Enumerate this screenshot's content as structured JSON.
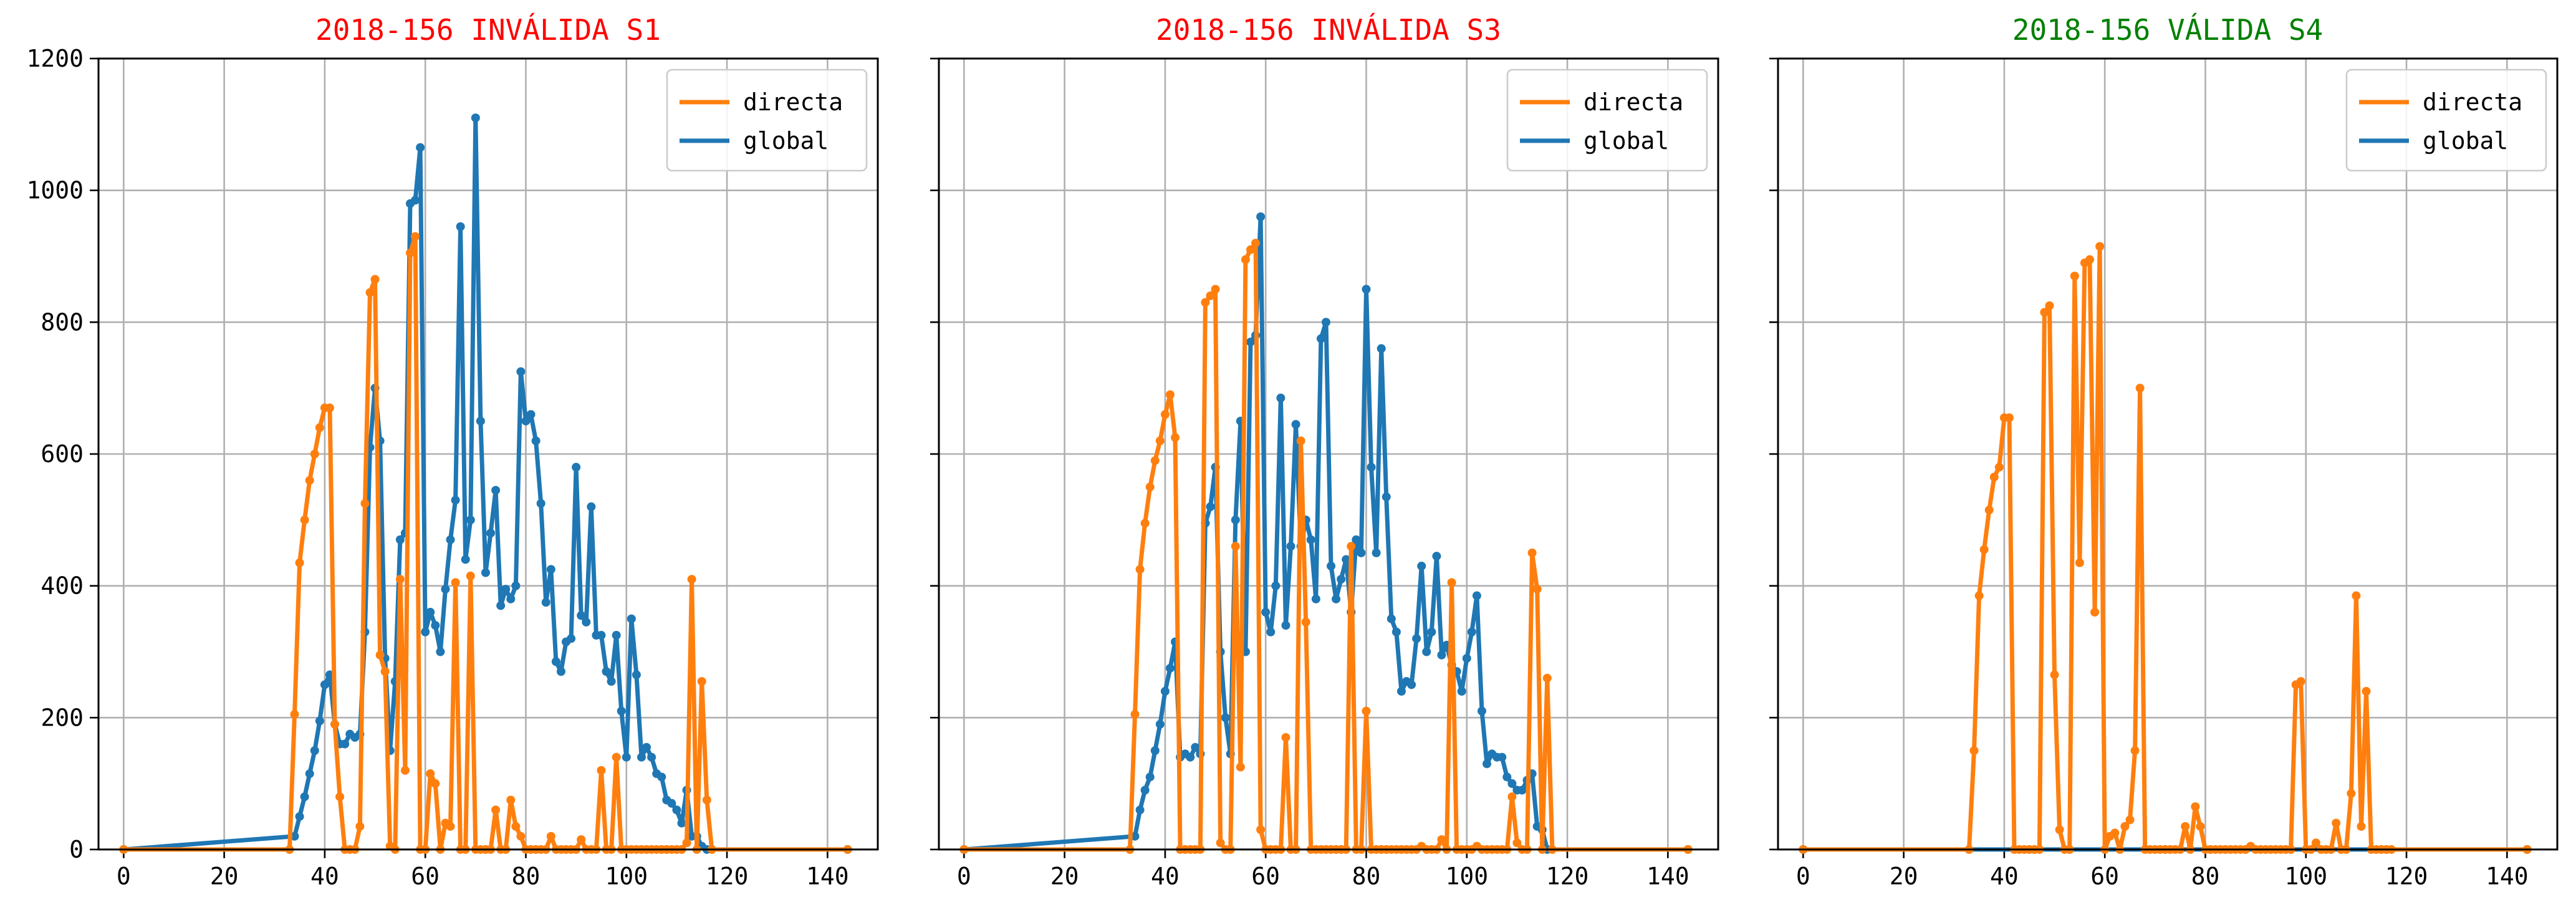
{
  "colors": {
    "directa": "#ff7f0e",
    "global": "#1f77b4",
    "title_invalid": "#ff0000",
    "title_valid": "#008000",
    "grid": "#b0b0b0",
    "axis": "#000000"
  },
  "chart_data": [
    {
      "type": "line",
      "title": "2018-156 INVÁLIDA S1",
      "title_color": "#ff0000",
      "xlim": [
        -5,
        150
      ],
      "ylim": [
        0,
        1200
      ],
      "x_ticks": [
        "0",
        "20",
        "40",
        "60",
        "80",
        "100",
        "120",
        "140"
      ],
      "y_ticks": [
        "0",
        "200",
        "400",
        "600",
        "800",
        "1000",
        "1200"
      ],
      "grid": true,
      "legend": "upper right",
      "series": [
        {
          "name": "global",
          "color": "#1f77b4",
          "x": [
            0,
            34,
            35,
            36,
            37,
            38,
            39,
            40,
            41,
            42,
            43,
            44,
            45,
            46,
            47,
            48,
            49,
            50,
            51,
            52,
            53,
            54,
            55,
            56,
            57,
            58,
            59,
            60,
            61,
            62,
            63,
            64,
            65,
            66,
            67,
            68,
            69,
            70,
            71,
            72,
            73,
            74,
            75,
            76,
            77,
            78,
            79,
            80,
            81,
            82,
            83,
            84,
            85,
            86,
            87,
            88,
            89,
            90,
            91,
            92,
            93,
            94,
            95,
            96,
            97,
            98,
            99,
            100,
            101,
            102,
            103,
            104,
            105,
            106,
            107,
            108,
            109,
            110,
            111,
            112,
            113,
            114,
            115,
            116,
            144
          ],
          "y": [
            0,
            20,
            50,
            80,
            115,
            150,
            195,
            250,
            265,
            190,
            160,
            160,
            175,
            170,
            175,
            330,
            610,
            700,
            620,
            290,
            150,
            255,
            470,
            480,
            980,
            985,
            1065,
            330,
            360,
            340,
            300,
            395,
            470,
            530,
            945,
            440,
            500,
            1110,
            650,
            420,
            480,
            545,
            370,
            395,
            380,
            400,
            725,
            650,
            660,
            620,
            525,
            375,
            425,
            285,
            270,
            315,
            320,
            580,
            355,
            345,
            520,
            325,
            325,
            270,
            255,
            325,
            210,
            140,
            350,
            265,
            140,
            155,
            140,
            115,
            110,
            75,
            70,
            60,
            40,
            90,
            20,
            20,
            5,
            0,
            0
          ]
        },
        {
          "name": "directa",
          "color": "#ff7f0e",
          "x": [
            0,
            33,
            34,
            35,
            36,
            37,
            38,
            39,
            40,
            41,
            42,
            43,
            44,
            45,
            46,
            47,
            48,
            49,
            50,
            51,
            52,
            53,
            54,
            55,
            56,
            57,
            58,
            59,
            60,
            61,
            62,
            63,
            64,
            65,
            66,
            67,
            68,
            69,
            70,
            71,
            72,
            73,
            74,
            75,
            76,
            77,
            78,
            79,
            80,
            81,
            82,
            83,
            84,
            85,
            86,
            87,
            88,
            89,
            90,
            91,
            92,
            93,
            94,
            95,
            96,
            97,
            98,
            99,
            100,
            101,
            102,
            103,
            104,
            105,
            106,
            107,
            108,
            109,
            110,
            111,
            112,
            113,
            114,
            115,
            116,
            117,
            144
          ],
          "y": [
            0,
            0,
            205,
            435,
            500,
            560,
            600,
            640,
            670,
            670,
            190,
            80,
            0,
            0,
            0,
            35,
            525,
            845,
            865,
            295,
            270,
            5,
            0,
            410,
            120,
            905,
            930,
            0,
            0,
            115,
            100,
            0,
            40,
            35,
            405,
            0,
            0,
            415,
            0,
            0,
            0,
            0,
            60,
            0,
            0,
            75,
            35,
            20,
            0,
            0,
            0,
            0,
            0,
            20,
            0,
            0,
            0,
            0,
            0,
            15,
            0,
            0,
            0,
            120,
            0,
            0,
            140,
            0,
            0,
            0,
            0,
            0,
            0,
            0,
            0,
            0,
            0,
            0,
            0,
            0,
            10,
            410,
            0,
            255,
            75,
            0,
            0
          ]
        }
      ]
    },
    {
      "type": "line",
      "title": "2018-156 INVÁLIDA S3",
      "title_color": "#ff0000",
      "xlim": [
        -5,
        150
      ],
      "ylim": [
        0,
        1200
      ],
      "x_ticks": [
        "0",
        "20",
        "40",
        "60",
        "80",
        "100",
        "120",
        "140"
      ],
      "y_ticks": [],
      "grid": true,
      "legend": "upper right",
      "series": [
        {
          "name": "global",
          "color": "#1f77b4",
          "x": [
            0,
            34,
            35,
            36,
            37,
            38,
            39,
            40,
            41,
            42,
            43,
            44,
            45,
            46,
            47,
            48,
            49,
            50,
            51,
            52,
            53,
            54,
            55,
            56,
            57,
            58,
            59,
            60,
            61,
            62,
            63,
            64,
            65,
            66,
            67,
            68,
            69,
            70,
            71,
            72,
            73,
            74,
            75,
            76,
            77,
            78,
            79,
            80,
            81,
            82,
            83,
            84,
            85,
            86,
            87,
            88,
            89,
            90,
            91,
            92,
            93,
            94,
            95,
            96,
            97,
            98,
            99,
            100,
            101,
            102,
            103,
            104,
            105,
            106,
            107,
            108,
            109,
            110,
            111,
            112,
            113,
            114,
            115,
            116,
            144
          ],
          "y": [
            0,
            20,
            60,
            90,
            110,
            150,
            190,
            240,
            275,
            315,
            140,
            145,
            140,
            155,
            145,
            495,
            520,
            580,
            300,
            200,
            145,
            500,
            650,
            300,
            770,
            780,
            960,
            360,
            330,
            400,
            685,
            340,
            460,
            645,
            460,
            500,
            470,
            380,
            775,
            800,
            430,
            380,
            410,
            440,
            360,
            470,
            450,
            850,
            580,
            450,
            760,
            535,
            350,
            330,
            240,
            255,
            250,
            320,
            430,
            300,
            330,
            445,
            295,
            310,
            280,
            270,
            240,
            290,
            330,
            385,
            210,
            130,
            145,
            140,
            140,
            110,
            100,
            90,
            90,
            105,
            115,
            35,
            30,
            0,
            0
          ]
        },
        {
          "name": "directa",
          "color": "#ff7f0e",
          "x": [
            0,
            33,
            34,
            35,
            36,
            37,
            38,
            39,
            40,
            41,
            42,
            43,
            44,
            45,
            46,
            47,
            48,
            49,
            50,
            51,
            52,
            53,
            54,
            55,
            56,
            57,
            58,
            59,
            60,
            61,
            62,
            63,
            64,
            65,
            66,
            67,
            68,
            69,
            70,
            71,
            72,
            73,
            74,
            75,
            76,
            77,
            78,
            79,
            80,
            81,
            82,
            83,
            84,
            85,
            86,
            87,
            88,
            89,
            90,
            91,
            92,
            93,
            94,
            95,
            96,
            97,
            98,
            99,
            100,
            101,
            102,
            103,
            104,
            105,
            106,
            107,
            108,
            109,
            110,
            111,
            112,
            113,
            114,
            115,
            116,
            117,
            144
          ],
          "y": [
            0,
            0,
            205,
            425,
            495,
            550,
            590,
            620,
            660,
            690,
            625,
            0,
            0,
            0,
            0,
            0,
            830,
            840,
            850,
            10,
            0,
            0,
            460,
            125,
            895,
            910,
            920,
            30,
            0,
            0,
            0,
            0,
            170,
            0,
            0,
            620,
            345,
            0,
            0,
            0,
            0,
            0,
            0,
            0,
            0,
            460,
            0,
            0,
            210,
            0,
            0,
            0,
            0,
            0,
            0,
            0,
            0,
            0,
            0,
            5,
            0,
            0,
            0,
            15,
            0,
            405,
            0,
            0,
            0,
            0,
            5,
            0,
            0,
            0,
            0,
            0,
            0,
            80,
            10,
            0,
            0,
            450,
            395,
            0,
            260,
            0,
            0
          ]
        }
      ]
    },
    {
      "type": "line",
      "title": "2018-156 VÁLIDA S4",
      "title_color": "#008000",
      "xlim": [
        -5,
        150
      ],
      "ylim": [
        0,
        1200
      ],
      "x_ticks": [
        "0",
        "20",
        "40",
        "60",
        "80",
        "100",
        "120",
        "140"
      ],
      "y_ticks": [],
      "grid": true,
      "legend": "upper right",
      "series": [
        {
          "name": "global",
          "color": "#1f77b4",
          "x": [
            0,
            144
          ],
          "y": [
            0,
            0
          ]
        },
        {
          "name": "directa",
          "color": "#ff7f0e",
          "x": [
            0,
            33,
            34,
            35,
            36,
            37,
            38,
            39,
            40,
            41,
            42,
            43,
            44,
            45,
            46,
            47,
            48,
            49,
            50,
            51,
            52,
            53,
            54,
            55,
            56,
            57,
            58,
            59,
            60,
            61,
            62,
            63,
            64,
            65,
            66,
            67,
            68,
            69,
            70,
            71,
            72,
            73,
            74,
            75,
            76,
            77,
            78,
            79,
            80,
            81,
            82,
            83,
            84,
            85,
            86,
            87,
            88,
            89,
            90,
            91,
            92,
            93,
            94,
            95,
            96,
            97,
            98,
            99,
            100,
            101,
            102,
            103,
            104,
            105,
            106,
            107,
            108,
            109,
            110,
            111,
            112,
            113,
            114,
            115,
            116,
            117,
            144
          ],
          "y": [
            0,
            0,
            150,
            385,
            455,
            515,
            565,
            580,
            655,
            655,
            0,
            0,
            0,
            0,
            0,
            0,
            815,
            825,
            265,
            30,
            0,
            0,
            870,
            435,
            890,
            895,
            360,
            915,
            0,
            20,
            25,
            0,
            35,
            45,
            150,
            700,
            0,
            0,
            0,
            0,
            0,
            0,
            0,
            0,
            35,
            0,
            65,
            35,
            0,
            0,
            0,
            0,
            0,
            0,
            0,
            0,
            0,
            5,
            0,
            0,
            0,
            0,
            0,
            0,
            0,
            0,
            250,
            255,
            0,
            0,
            10,
            0,
            0,
            0,
            40,
            0,
            0,
            85,
            385,
            35,
            240,
            0,
            0,
            0,
            0,
            0,
            0
          ]
        }
      ]
    }
  ]
}
